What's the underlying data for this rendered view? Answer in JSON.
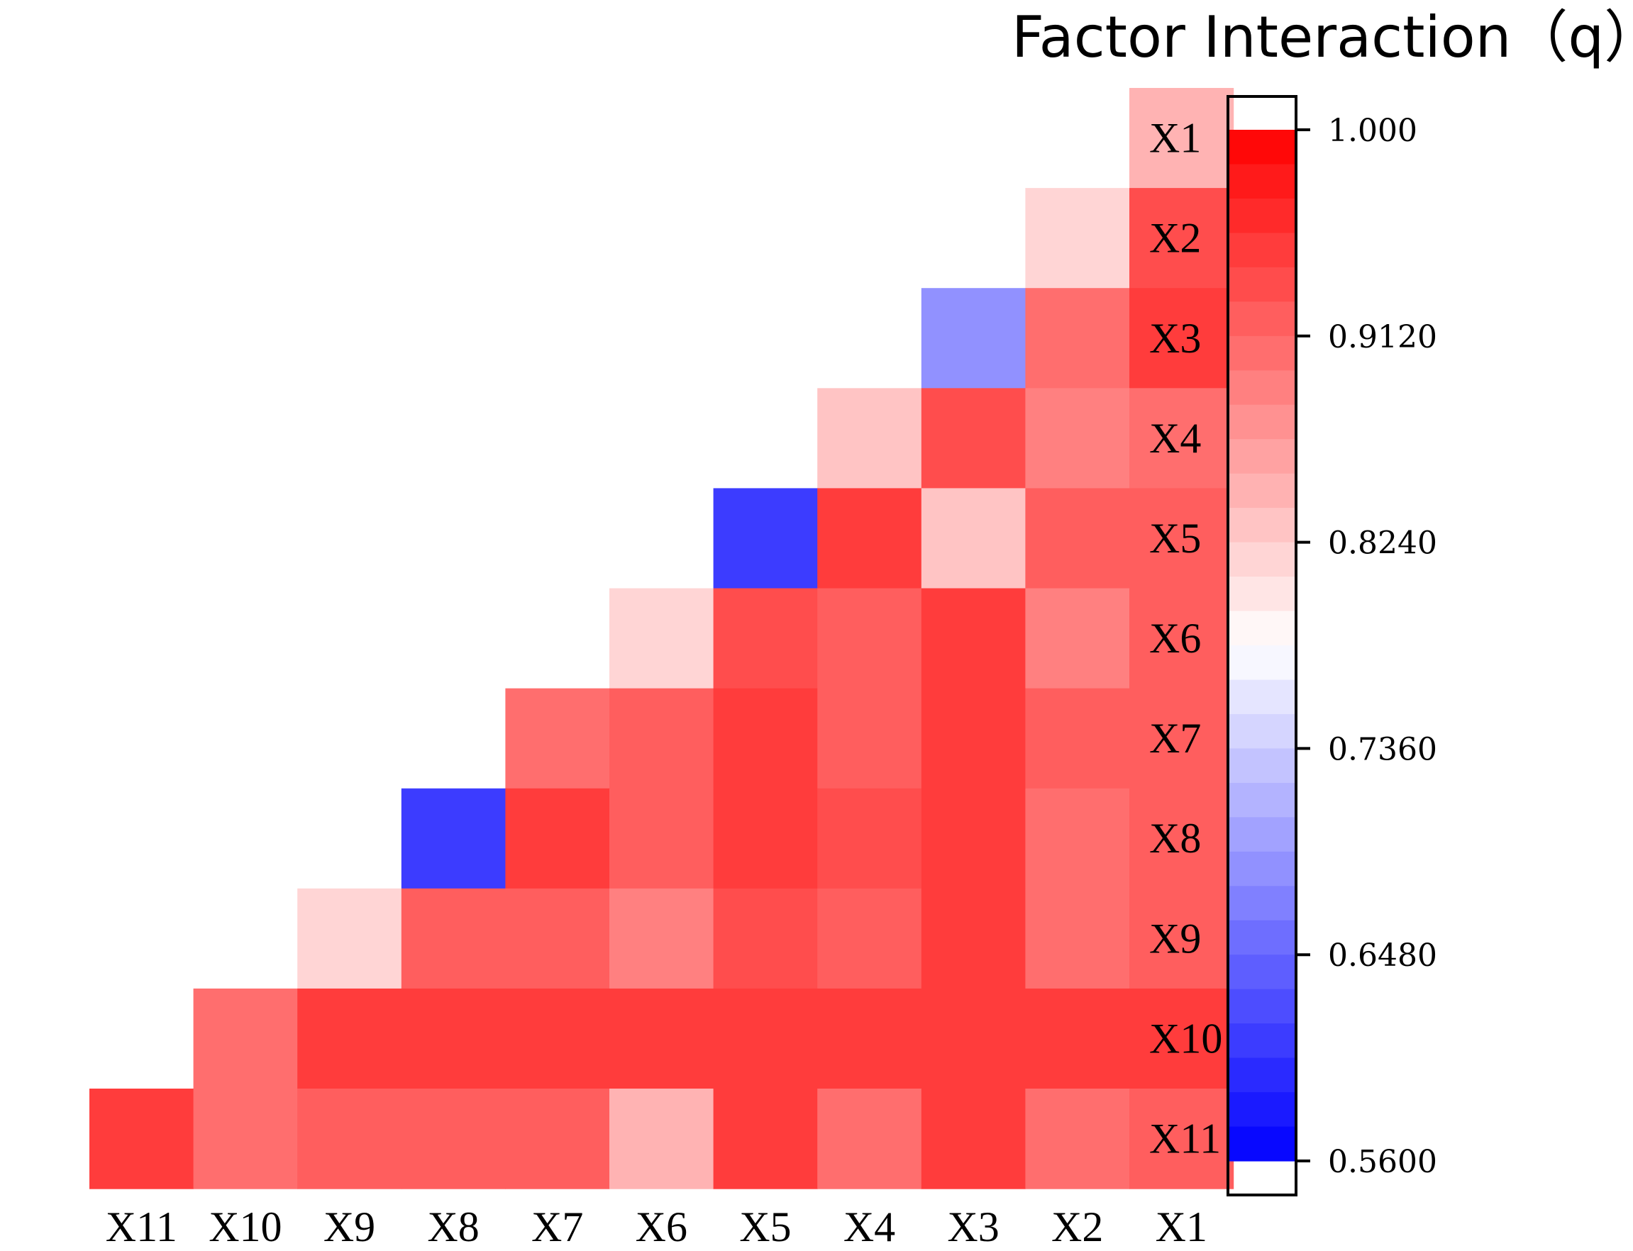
{
  "chart_data": {
    "type": "heatmap",
    "title": "Factor Interaction（q）",
    "row_labels": [
      "X1",
      "X2",
      "X3",
      "X4",
      "X5",
      "X6",
      "X7",
      "X8",
      "X9",
      "X10",
      "X11"
    ],
    "col_labels": [
      "X11",
      "X10",
      "X9",
      "X8",
      "X7",
      "X6",
      "X5",
      "X4",
      "X3",
      "X2",
      "X1"
    ],
    "values": [
      [
        null,
        null,
        null,
        null,
        null,
        null,
        null,
        null,
        null,
        null,
        0.853
      ],
      [
        null,
        null,
        null,
        null,
        null,
        null,
        null,
        null,
        null,
        0.81,
        0.93
      ],
      [
        null,
        null,
        null,
        null,
        null,
        null,
        null,
        null,
        0.69,
        0.905,
        0.95
      ],
      [
        null,
        null,
        null,
        null,
        null,
        null,
        null,
        0.837,
        0.935,
        0.893,
        0.903
      ],
      [
        null,
        null,
        null,
        null,
        null,
        null,
        0.61,
        0.95,
        0.825,
        0.915,
        0.915
      ],
      [
        null,
        null,
        null,
        null,
        null,
        0.811,
        0.935,
        0.92,
        0.955,
        0.884,
        0.915
      ],
      [
        null,
        null,
        null,
        null,
        0.91,
        0.925,
        0.95,
        0.925,
        0.955,
        0.92,
        0.92
      ],
      [
        null,
        null,
        null,
        0.61,
        0.945,
        0.925,
        0.95,
        0.94,
        0.955,
        0.91,
        0.915
      ],
      [
        null,
        null,
        0.811,
        0.92,
        0.92,
        0.893,
        0.935,
        0.92,
        0.955,
        0.904,
        0.915
      ],
      [
        null,
        0.905,
        0.955,
        0.955,
        0.955,
        0.955,
        0.955,
        0.955,
        0.955,
        0.955,
        0.955
      ],
      [
        0.95,
        0.905,
        0.915,
        0.915,
        0.915,
        0.853,
        0.955,
        0.905,
        0.955,
        0.91,
        0.915
      ]
    ],
    "colorbar": {
      "min": 0.56,
      "max": 1.0,
      "ticks": [
        1.0,
        0.912,
        0.824,
        0.736,
        0.648,
        0.56
      ],
      "tick_labels": [
        "1.000",
        "0.9120",
        "0.8240",
        "0.7360",
        "0.6480",
        "0.5600"
      ],
      "low_color": "#0000ff",
      "mid_color": "#ffffff",
      "high_color": "#ff0000",
      "steps": 30
    }
  }
}
